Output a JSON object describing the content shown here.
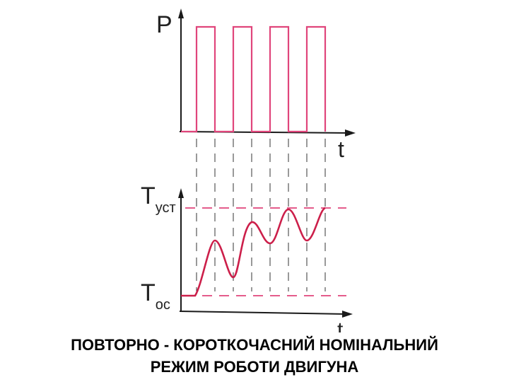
{
  "top_graph": {
    "y_axis_label": "P",
    "x_axis_label": "t",
    "pulse_count": 4
  },
  "bottom_graph": {
    "level_steady_label_main": "T",
    "level_steady_label_sub": "уст",
    "level_ambient_label_main": "T",
    "level_ambient_label_sub": "ос",
    "x_axis_label": "t"
  },
  "caption": {
    "line1": "ПОВТОРНО - КОРОТКОЧАСНИЙ НОМІНАЛЬНИЙ",
    "line2": "РЕЖИМ РОБОТИ ДВИГУНА"
  },
  "colors": {
    "axis": "#1a1a1a",
    "pulse": "#e0457b",
    "temperature_curve": "#cc1f4a",
    "level_dash": "#e0457b",
    "guide_dash": "#333333",
    "caption": "#000000"
  }
}
